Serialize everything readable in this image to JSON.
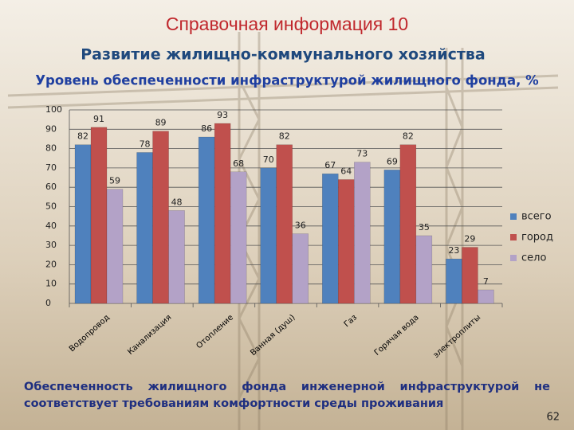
{
  "slide": {
    "title": "Справочная информация 10",
    "subtitle": "Развитие жилищно-коммунального хозяйства",
    "note": "Обеспеченность жилищного фонда инженерной инфраструктурой не соответствует требованиям комфортности среды проживания",
    "page_number": "62"
  },
  "chart_data": {
    "type": "bar",
    "title": "Уровень обеспеченности инфраструктурой жилищного фонда, %",
    "categories": [
      "Водопровод",
      "Канализация",
      "Отопление",
      "Ванная (душ)",
      "Газ",
      "Горячая вода",
      "электроплиты"
    ],
    "series": [
      {
        "name": "всего",
        "color": "#4f81bd",
        "values": [
          82,
          78,
          86,
          70,
          67,
          69,
          23
        ]
      },
      {
        "name": "город",
        "color": "#c0504d",
        "values": [
          91,
          89,
          93,
          82,
          64,
          82,
          29
        ]
      },
      {
        "name": "село",
        "color": "#b3a2c7",
        "values": [
          59,
          48,
          68,
          36,
          73,
          35,
          7
        ]
      }
    ],
    "ylim": [
      0,
      100
    ],
    "yticks": [
      0,
      10,
      20,
      30,
      40,
      50,
      60,
      70,
      80,
      90,
      100
    ],
    "grid": true,
    "legend": "right"
  }
}
